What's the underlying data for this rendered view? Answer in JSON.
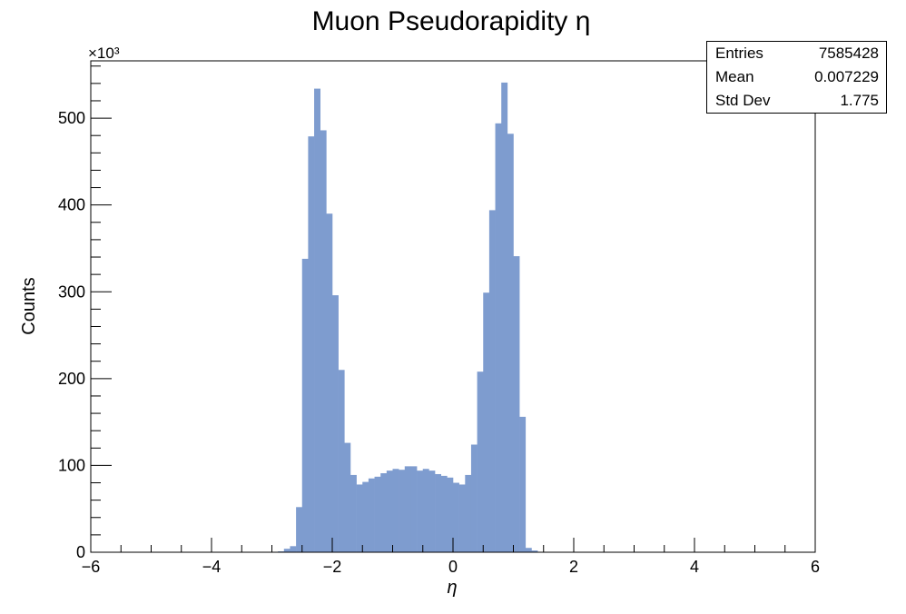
{
  "chart_data": {
    "type": "bar",
    "title": "Muon Pseudorapidity η",
    "xlabel": "η",
    "ylabel": "Counts",
    "y_multiplier_label": "×10³",
    "xlim": [
      -6,
      6
    ],
    "ylim": [
      0,
      566
    ],
    "x_ticks": [
      "−6",
      "−4",
      "−2",
      "0",
      "2",
      "4",
      "6"
    ],
    "y_ticks": [
      "0",
      "100",
      "200",
      "300",
      "400",
      "500"
    ],
    "y_tick_values": [
      0,
      100,
      200,
      300,
      400,
      500
    ],
    "x_tick_values": [
      -6,
      -4,
      -2,
      0,
      2,
      4,
      6
    ],
    "bin_width": 0.1,
    "x_start": -2.9,
    "values": [
      1,
      4,
      7,
      52,
      338,
      479,
      534,
      486,
      390,
      296,
      210,
      126,
      89,
      78,
      81,
      85,
      87,
      91,
      94,
      96,
      95,
      99,
      99,
      94,
      96,
      94,
      90,
      88,
      86,
      80,
      78,
      89,
      124,
      208,
      299,
      394,
      494,
      541,
      482,
      341,
      156,
      5,
      2
    ],
    "fill_color": "#7e9ccf",
    "grid": false,
    "legend": "top-right stats box"
  },
  "stats": [
    {
      "label": "Entries",
      "value": "7585428"
    },
    {
      "label": "Mean",
      "value": "0.007229"
    },
    {
      "label": "Std Dev",
      "value": "1.775"
    }
  ]
}
